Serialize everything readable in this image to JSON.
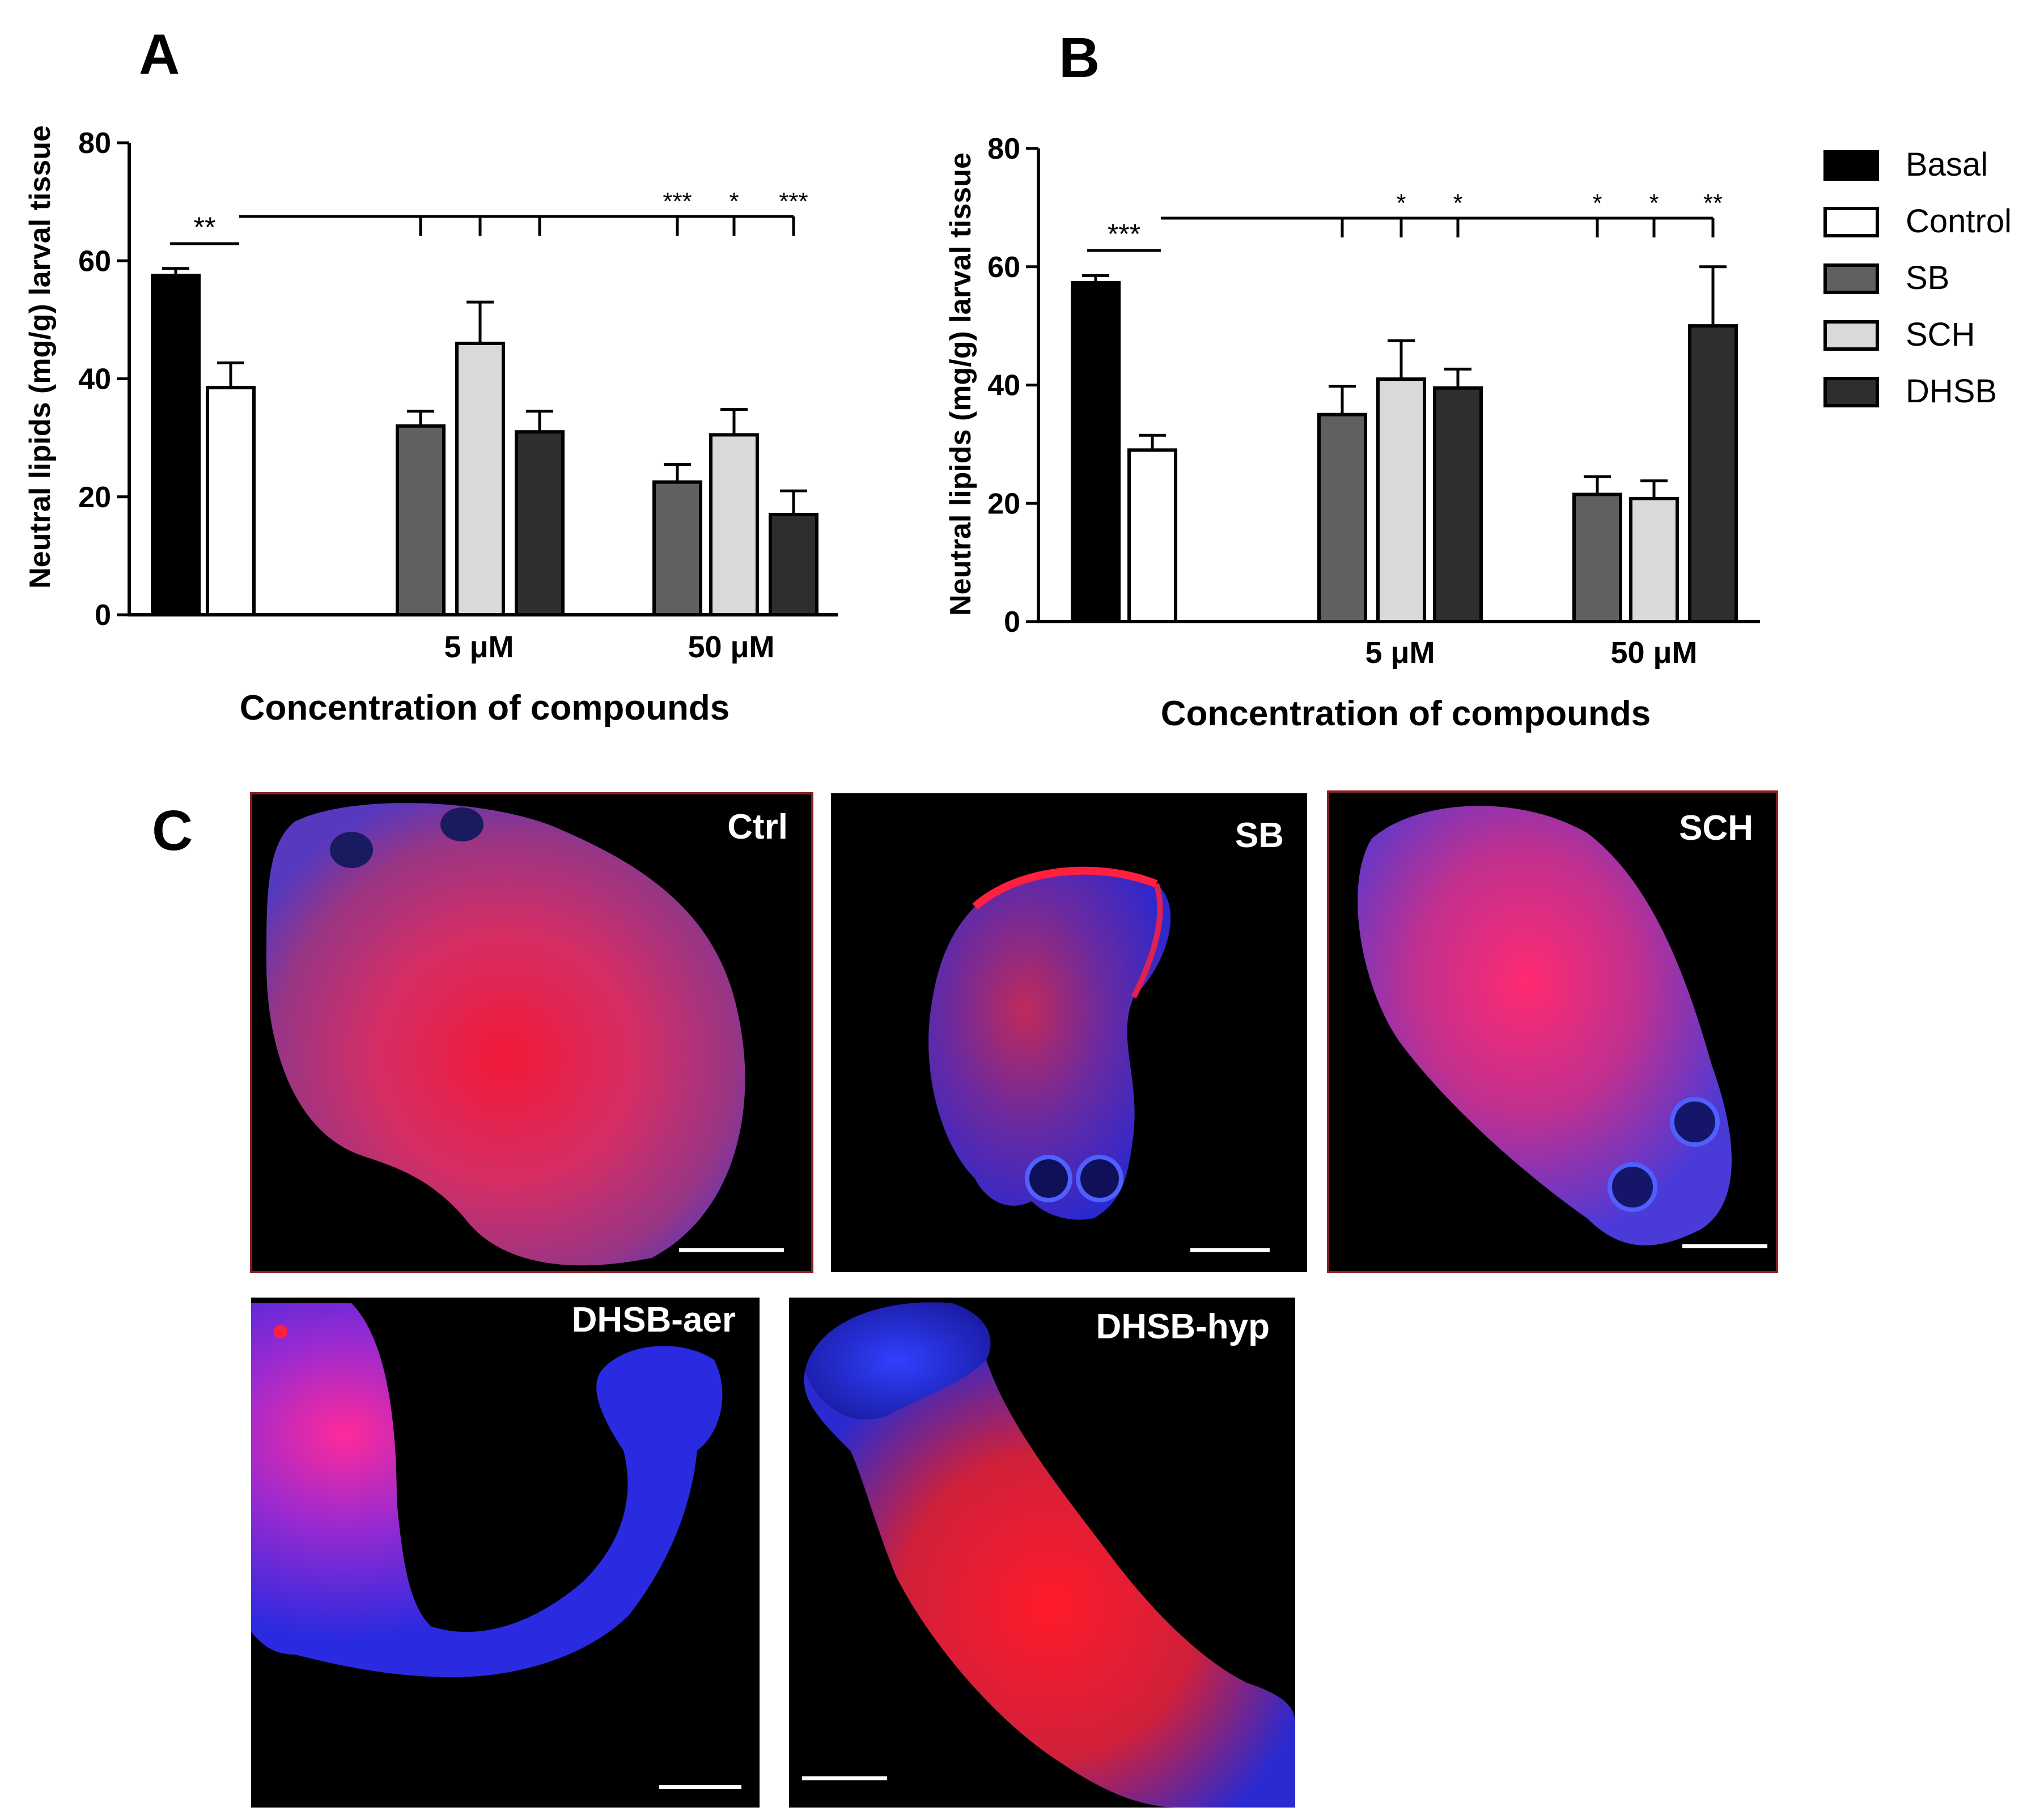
{
  "panels": {
    "a": "A",
    "b": "B",
    "c": "C"
  },
  "legend": [
    {
      "name": "Basal",
      "color": "#000000"
    },
    {
      "name": "Control",
      "color": "#ffffff"
    },
    {
      "name": "SB",
      "color": "#606060"
    },
    {
      "name": "SCH",
      "color": "#d9d9d9"
    },
    {
      "name": "DHSB",
      "color": "#2e2e2e"
    }
  ],
  "chart_data": [
    {
      "panel": "A",
      "type": "bar",
      "ylabel": "Neutral lipids (mg/g) larval tissue",
      "xlabel": "Concentration of compounds",
      "ylim": [
        0,
        80
      ],
      "yticks": [
        "0",
        "20",
        "40",
        "60",
        "80"
      ],
      "group_labels": [
        "5 μM",
        "50 μM"
      ],
      "bars": [
        {
          "series": "Basal",
          "group": "",
          "value": 57.5,
          "error": 1.2
        },
        {
          "series": "Control",
          "group": "",
          "value": 38.5,
          "error": 4.2
        },
        {
          "series": "SB",
          "group": "5 μM",
          "value": 32,
          "error": 2.5
        },
        {
          "series": "SCH",
          "group": "5 μM",
          "value": 46,
          "error": 7
        },
        {
          "series": "DHSB",
          "group": "5 μM",
          "value": 31,
          "error": 3.5
        },
        {
          "series": "SB",
          "group": "50 μM",
          "value": 22.5,
          "error": 3
        },
        {
          "series": "SCH",
          "group": "50 μM",
          "value": 30.5,
          "error": 4.3
        },
        {
          "series": "DHSB",
          "group": "50 μM",
          "value": 17,
          "error": 4
        }
      ],
      "significance": {
        "pair": "**",
        "bracket": [
          "",
          "",
          "",
          "***",
          "*",
          "***"
        ]
      }
    },
    {
      "panel": "B",
      "type": "bar",
      "ylabel": "Neutral lipids (mg/g) larval tissue",
      "xlabel": "Concentration of compounds",
      "ylim": [
        0,
        80
      ],
      "yticks": [
        "0",
        "20",
        "40",
        "60",
        "80"
      ],
      "group_labels": [
        "5 μM",
        "50 μM"
      ],
      "bars": [
        {
          "series": "Basal",
          "group": "",
          "value": 57.3,
          "error": 1.2
        },
        {
          "series": "Control",
          "group": "",
          "value": 29,
          "error": 2.5
        },
        {
          "series": "SB",
          "group": "5 μM",
          "value": 35,
          "error": 4.8
        },
        {
          "series": "SCH",
          "group": "5 μM",
          "value": 41,
          "error": 6.5
        },
        {
          "series": "DHSB",
          "group": "5 μM",
          "value": 39.5,
          "error": 3.2
        },
        {
          "series": "SB",
          "group": "50 μM",
          "value": 21.5,
          "error": 3
        },
        {
          "series": "SCH",
          "group": "50 μM",
          "value": 20.8,
          "error": 3
        },
        {
          "series": "DHSB",
          "group": "50 μM",
          "value": 50,
          "error": 10
        }
      ],
      "significance": {
        "pair": "***",
        "bracket": [
          "",
          "*",
          "*",
          "*",
          "*",
          "**"
        ]
      }
    }
  ],
  "micrographs": [
    {
      "label": "Ctrl"
    },
    {
      "label": "SB"
    },
    {
      "label": "SCH"
    },
    {
      "label": "DHSB-aer"
    },
    {
      "label": "DHSB-hyp"
    }
  ]
}
